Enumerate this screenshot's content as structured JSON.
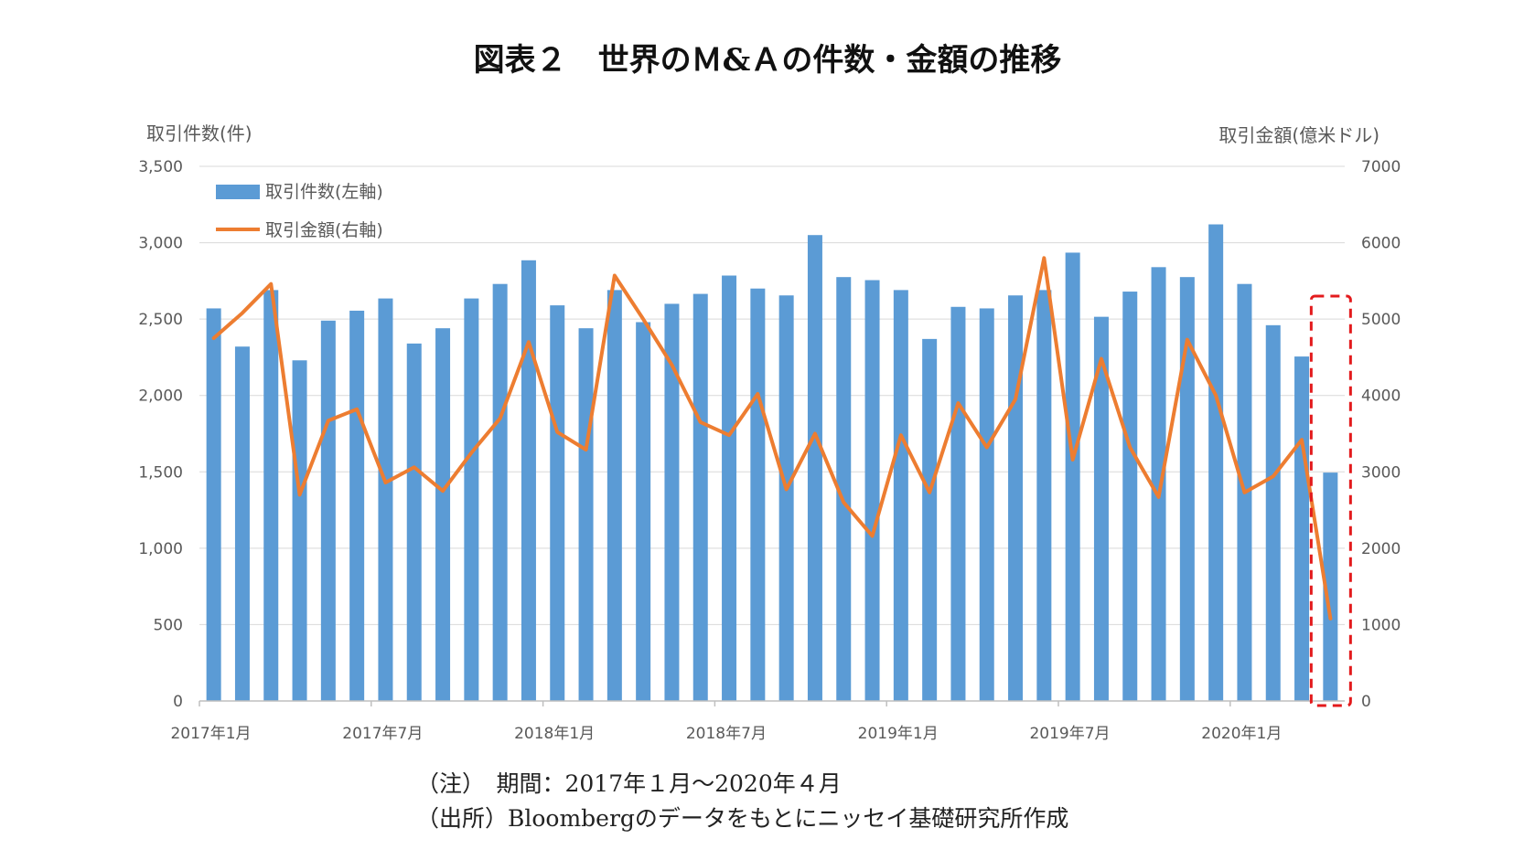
{
  "figure_title": "図表２　世界のＭ&Ａの件数・金額の推移",
  "colors": {
    "bar": "#5b9bd5",
    "line": "#ed7d31",
    "highlight": "#e31a1c",
    "grid": "#d9d9d9",
    "axis_text": "#595959"
  },
  "notes": {
    "period": "（注）　期間：2017年１月～2020年４月",
    "source": "（出所）Bloombergのデータをもとにニッセイ基礎研究所作成"
  },
  "chart_data": {
    "type": "bar+line",
    "left_axis": {
      "title": "取引件数(件)",
      "ylim": [
        0,
        3500
      ],
      "ticks": [
        "0",
        "500",
        "1,000",
        "1,500",
        "2,000",
        "2,500",
        "3,000",
        "3,500"
      ]
    },
    "right_axis": {
      "title": "取引金額(億米ドル)",
      "ylim": [
        0,
        7000
      ],
      "ticks": [
        "0",
        "1000",
        "2000",
        "3000",
        "4000",
        "5000",
        "6000",
        "7000"
      ]
    },
    "x_tick_labels": [
      {
        "index": 0,
        "label": "2017年1月"
      },
      {
        "index": 6,
        "label": "2017年7月"
      },
      {
        "index": 12,
        "label": "2018年1月"
      },
      {
        "index": 18,
        "label": "2018年7月"
      },
      {
        "index": 24,
        "label": "2019年1月"
      },
      {
        "index": 30,
        "label": "2019年7月"
      },
      {
        "index": 36,
        "label": "2020年1月"
      }
    ],
    "categories": [
      "2017-01",
      "2017-02",
      "2017-03",
      "2017-04",
      "2017-05",
      "2017-06",
      "2017-07",
      "2017-08",
      "2017-09",
      "2017-10",
      "2017-11",
      "2017-12",
      "2018-01",
      "2018-02",
      "2018-03",
      "2018-04",
      "2018-05",
      "2018-06",
      "2018-07",
      "2018-08",
      "2018-09",
      "2018-10",
      "2018-11",
      "2018-12",
      "2019-01",
      "2019-02",
      "2019-03",
      "2019-04",
      "2019-05",
      "2019-06",
      "2019-07",
      "2019-08",
      "2019-09",
      "2019-10",
      "2019-11",
      "2019-12",
      "2020-01",
      "2020-02",
      "2020-03",
      "2020-04"
    ],
    "series": [
      {
        "name": "取引件数(左軸)",
        "axis": "left",
        "kind": "bar",
        "values": [
          2570,
          2320,
          2690,
          2230,
          2490,
          2555,
          2635,
          2340,
          2440,
          2635,
          2730,
          2885,
          2590,
          2440,
          2690,
          2480,
          2600,
          2665,
          2785,
          2700,
          2655,
          3050,
          2775,
          2755,
          2690,
          2370,
          2580,
          2570,
          2655,
          2690,
          2935,
          2515,
          2680,
          2840,
          2775,
          3120,
          2730,
          2460,
          2255,
          1495
        ]
      },
      {
        "name": "取引金額(右軸)",
        "axis": "right",
        "kind": "line",
        "values": [
          4750,
          5080,
          5460,
          2700,
          3670,
          3820,
          2860,
          3060,
          2750,
          3250,
          3700,
          4700,
          3520,
          3290,
          5570,
          5000,
          4400,
          3650,
          3480,
          4020,
          2770,
          3500,
          2600,
          2160,
          3480,
          2730,
          3900,
          3320,
          3950,
          5800,
          3160,
          4480,
          3320,
          2670,
          4730,
          4000,
          2730,
          2940,
          3420,
          1080
        ]
      }
    ],
    "highlight": {
      "index": 39,
      "style": "dashed-box"
    }
  }
}
